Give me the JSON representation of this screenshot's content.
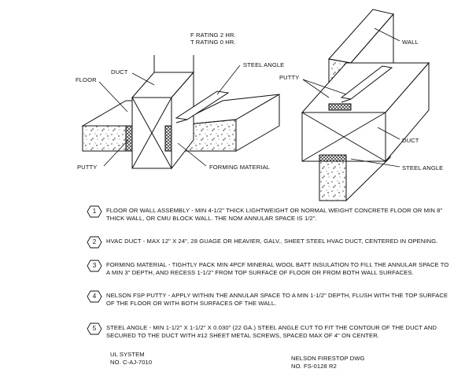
{
  "ratings": {
    "f_rating": "F RATING 2 HR.",
    "t_rating": "T RATING 0 HR."
  },
  "callouts": {
    "floor": "FLOOR",
    "duct_left": "DUCT",
    "steel_angle_left": "STEEL ANGLE",
    "putty_left": "PUTTY",
    "forming_material": "FORMING MATERIAL",
    "wall": "WALL",
    "putty_right": "PUTTY",
    "duct_right": "DUCT",
    "steel_angle_right": "STEEL ANGLE"
  },
  "notes": [
    {
      "number": "1",
      "text": "FLOOR OR WALL ASSEMBLY - MIN 4-1/2\" THICK LIGHTWEIGHT OR NORMAL WEIGHT CONCRETE FLOOR OR MIN 8\" THICK WALL, OR CMU BLOCK WALL. THE NOM ANNULAR SPACE IS 1/2\"."
    },
    {
      "number": "2",
      "text": "HVAC DUCT - MAX 12\" X 24\", 28 GUAGE OR HEAVIER, GALV., SHEET STEEL HVAC DUCT, CENTERED IN OPENING."
    },
    {
      "number": "3",
      "text": "FORMING MATERIAL - TIGHTLY PACK MIN 4PCF MINERAL WOOL BATT INSULATION TO FILL THE ANNULAR SPACE TO A MIN 3\" DEPTH, AND RECESS 1-1/2\" FROM TOP SURFACE OF FLOOR OR FROM BOTH WALL SURFACES."
    },
    {
      "number": "4",
      "text": "NELSON FSP PUTTY - APPLY WITHIN THE ANNULAR SPACE TO A MIN 1-1/2\" DEPTH, FLUSH WITH THE TOP SURFACE OF THE FLOOR OR WITH BOTH SURFACES OF THE WALL."
    },
    {
      "number": "5",
      "text": "STEEL ANGLE - MIN 1-1/2\" X 1-1/2\" X 0.030\" (22 GA.) STEEL ANGLE CUT TO FIT THE CONTOUR OF THE DUCT AND SECURED TO THE DUCT WITH #12 SHEET METAL SCREWS, SPACED MAX OF 4\" ON CENTER."
    }
  ],
  "footer": {
    "ul_system_label": "UL SYSTEM",
    "ul_system_number": "NO. C-AJ-7010",
    "dwg_label": "NELSON FIRESTOP DWG",
    "dwg_number": "NO. FS-0128 R2"
  }
}
